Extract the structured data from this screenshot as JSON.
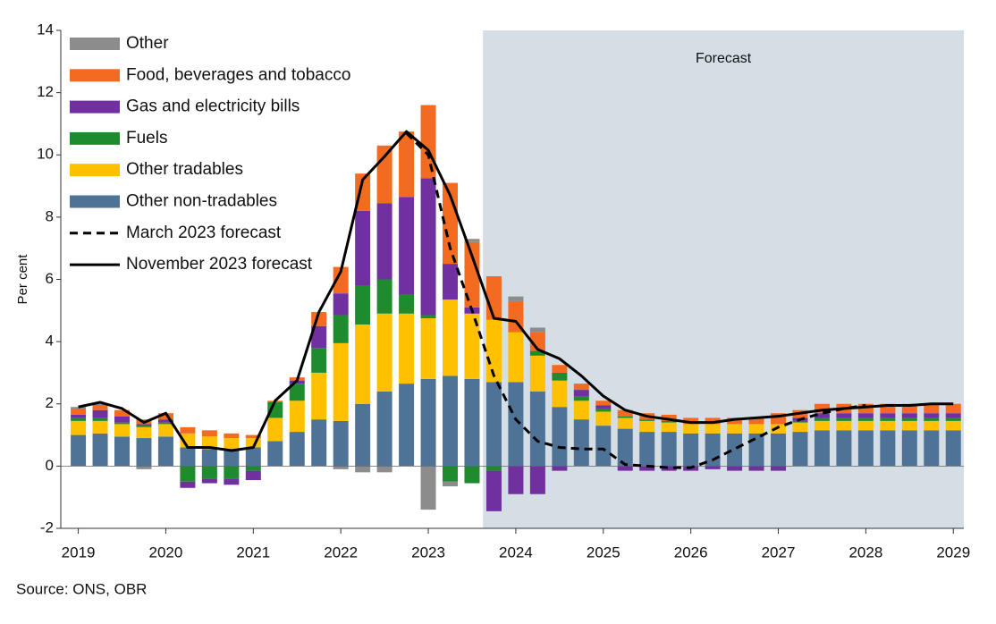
{
  "chart_data": {
    "type": "bar",
    "stacked": true,
    "y_label": "Per cent",
    "source": "Source: ONS, OBR",
    "shaded_region": {
      "label": "Forecast",
      "x": [
        2023.625,
        2029.12
      ],
      "color": "#d5dde5"
    },
    "xlim": [
      2018.8,
      2029.12
    ],
    "ylim": [
      -2,
      14
    ],
    "yticks": [
      -2,
      0,
      2,
      4,
      6,
      8,
      10,
      12,
      14
    ],
    "xticks": [
      2019,
      2020,
      2021,
      2022,
      2023,
      2024,
      2025,
      2026,
      2027,
      2028,
      2029
    ],
    "x": [
      2019,
      2019.25,
      2019.5,
      2019.75,
      2020,
      2020.25,
      2020.5,
      2020.75,
      2021,
      2021.25,
      2021.5,
      2021.75,
      2022,
      2022.25,
      2022.5,
      2022.75,
      2023,
      2023.25,
      2023.5,
      2023.75,
      2024,
      2024.25,
      2024.5,
      2024.75,
      2025,
      2025.25,
      2025.5,
      2025.75,
      2026,
      2026.25,
      2026.5,
      2026.75,
      2027,
      2027.25,
      2027.5,
      2027.75,
      2028,
      2028.25,
      2028.5,
      2028.75,
      2029
    ],
    "series": [
      {
        "name": "Other non-tradables",
        "color": "#4f7396",
        "values": [
          1.0,
          1.05,
          0.95,
          0.9,
          0.95,
          0.6,
          0.55,
          0.55,
          0.6,
          0.8,
          1.1,
          1.5,
          1.45,
          2.0,
          2.4,
          2.65,
          2.8,
          2.9,
          2.8,
          2.7,
          2.7,
          2.4,
          1.9,
          1.5,
          1.3,
          1.2,
          1.1,
          1.1,
          1.05,
          1.05,
          1.05,
          1.05,
          1.05,
          1.1,
          1.15,
          1.15,
          1.15,
          1.15,
          1.15,
          1.15,
          1.15
        ]
      },
      {
        "name": "Other tradables",
        "color": "#ffc000",
        "values": [
          0.45,
          0.4,
          0.4,
          0.35,
          0.4,
          0.45,
          0.4,
          0.35,
          0.3,
          0.75,
          1.0,
          1.5,
          2.5,
          2.55,
          2.5,
          2.25,
          1.95,
          2.45,
          2.1,
          2.0,
          1.6,
          1.15,
          0.85,
          0.6,
          0.45,
          0.35,
          0.35,
          0.3,
          0.3,
          0.3,
          0.3,
          0.3,
          0.3,
          0.3,
          0.3,
          0.3,
          0.3,
          0.3,
          0.3,
          0.3,
          0.3
        ]
      },
      {
        "name": "Fuels",
        "color": "#1e8c2e",
        "values": [
          0.1,
          0.1,
          0.05,
          0.05,
          0.05,
          -0.5,
          -0.4,
          -0.4,
          -0.15,
          0.5,
          0.55,
          0.8,
          0.9,
          1.25,
          1.1,
          0.6,
          0.1,
          -0.5,
          -0.55,
          -0.15,
          0,
          0.15,
          0.25,
          0.15,
          0.1,
          0.05,
          0.05,
          0.05,
          0,
          0,
          0,
          0,
          0,
          0.05,
          0.1,
          0.1,
          0.1,
          0.1,
          0.1,
          0.1,
          0.1
        ]
      },
      {
        "name": "Gas and electricity bills",
        "color": "#7030a0",
        "values": [
          0.1,
          0.25,
          0.2,
          0.05,
          0.1,
          -0.2,
          -0.15,
          -0.2,
          -0.3,
          0,
          0.1,
          0.7,
          0.7,
          2.4,
          2.45,
          3.15,
          4.4,
          1.15,
          0.2,
          -1.3,
          -0.9,
          -0.9,
          -0.15,
          0.2,
          0.1,
          -0.15,
          -0.15,
          -0.15,
          -0.15,
          -0.1,
          -0.15,
          -0.15,
          -0.15,
          0.1,
          0.15,
          0.15,
          0.15,
          0.15,
          0.15,
          0.15,
          0.15
        ]
      },
      {
        "name": "Food, beverages and tobacco",
        "color": "#f26b21",
        "values": [
          0.2,
          0.15,
          0.2,
          0.15,
          0.2,
          0.2,
          0.2,
          0.15,
          0.1,
          0.05,
          0.1,
          0.45,
          0.85,
          1.2,
          1.85,
          2.1,
          2.35,
          2.6,
          2.1,
          1.4,
          1.0,
          0.6,
          0.25,
          0.2,
          0.15,
          0.2,
          0.2,
          0.2,
          0.2,
          0.2,
          0.2,
          0.2,
          0.35,
          0.25,
          0.3,
          0.3,
          0.3,
          0.3,
          0.3,
          0.3,
          0.3
        ]
      },
      {
        "name": "Other",
        "color": "#8c8c8c",
        "values": [
          0.05,
          0.05,
          0,
          -0.1,
          0,
          0,
          0,
          0,
          0,
          0,
          0,
          0,
          -0.1,
          -0.2,
          -0.2,
          0,
          -1.4,
          -0.15,
          0.1,
          0,
          0.15,
          0.15,
          0,
          0,
          0,
          0,
          0,
          0,
          0,
          0,
          0,
          0,
          0,
          0,
          0,
          0,
          0,
          0,
          0,
          0,
          0
        ]
      }
    ],
    "lines": [
      {
        "name": "March 2023 forecast",
        "color": "#000000",
        "dashed": true,
        "values": [
          null,
          null,
          null,
          null,
          null,
          null,
          null,
          null,
          null,
          null,
          null,
          null,
          null,
          null,
          null,
          10.7,
          10.0,
          7.0,
          5.0,
          2.9,
          1.5,
          0.8,
          0.6,
          0.55,
          0.55,
          0.05,
          0.0,
          -0.05,
          -0.05,
          0.2,
          0.55,
          0.9,
          1.25,
          1.5,
          1.7,
          1.85,
          1.95,
          null,
          null,
          null,
          null
        ]
      },
      {
        "name": "November 2023 forecast",
        "color": "#000000",
        "dashed": false,
        "values": [
          1.9,
          2.05,
          1.85,
          1.4,
          1.7,
          0.6,
          0.6,
          0.5,
          0.6,
          2.1,
          2.75,
          4.95,
          6.25,
          9.2,
          9.95,
          10.75,
          10.15,
          8.7,
          6.75,
          4.75,
          4.65,
          3.75,
          3.45,
          2.9,
          2.25,
          1.8,
          1.6,
          1.5,
          1.4,
          1.4,
          1.5,
          1.55,
          1.6,
          1.7,
          1.8,
          1.85,
          1.9,
          1.95,
          1.95,
          2.0,
          2.0
        ]
      }
    ]
  }
}
